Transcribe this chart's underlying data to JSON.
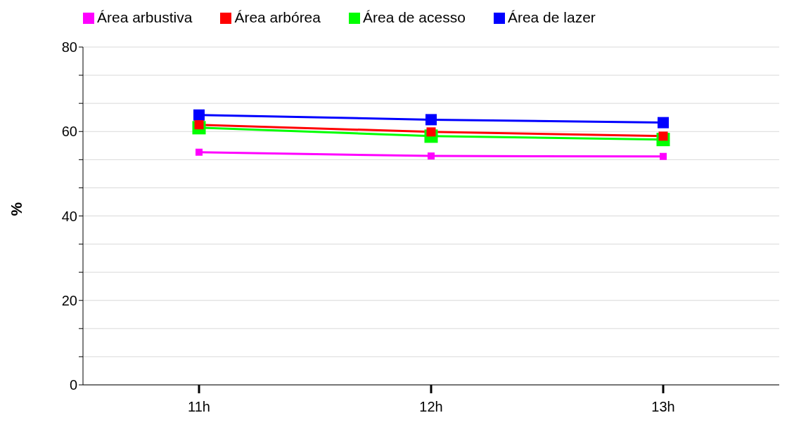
{
  "chart_data": {
    "type": "line",
    "ylabel": "%",
    "categories": [
      "11h",
      "12h",
      "13h"
    ],
    "series": [
      {
        "name": "Área de acesso",
        "color": "#00ff00",
        "values": [
          60.9,
          58.9,
          58.1
        ]
      },
      {
        "name": "Área de lazer",
        "color": "#0000ff",
        "values": [
          63.9,
          62.8,
          62.1
        ]
      },
      {
        "name": "Área arbórea",
        "color": "#ff0000",
        "values": [
          61.6,
          59.9,
          58.9
        ]
      },
      {
        "name": "Área arbustiva",
        "color": "#ff00ff",
        "values": [
          55.1,
          54.2,
          54.1
        ]
      }
    ],
    "ylim": [
      0,
      80
    ],
    "yticks": [
      0,
      {
        "value": 6.667,
        "label": null
      },
      {
        "value": 13.333,
        "label": null
      },
      20,
      {
        "value": 26.667,
        "label": null
      },
      {
        "value": 33.333,
        "label": null
      },
      40,
      {
        "value": 46.667,
        "label": null
      },
      {
        "value": 53.333,
        "label": null
      },
      60,
      {
        "value": 66.667,
        "label": null
      },
      {
        "value": 73.333,
        "label": null
      },
      80
    ],
    "grid": "y",
    "legend": "top",
    "marker": "square",
    "line_style": "solid"
  }
}
